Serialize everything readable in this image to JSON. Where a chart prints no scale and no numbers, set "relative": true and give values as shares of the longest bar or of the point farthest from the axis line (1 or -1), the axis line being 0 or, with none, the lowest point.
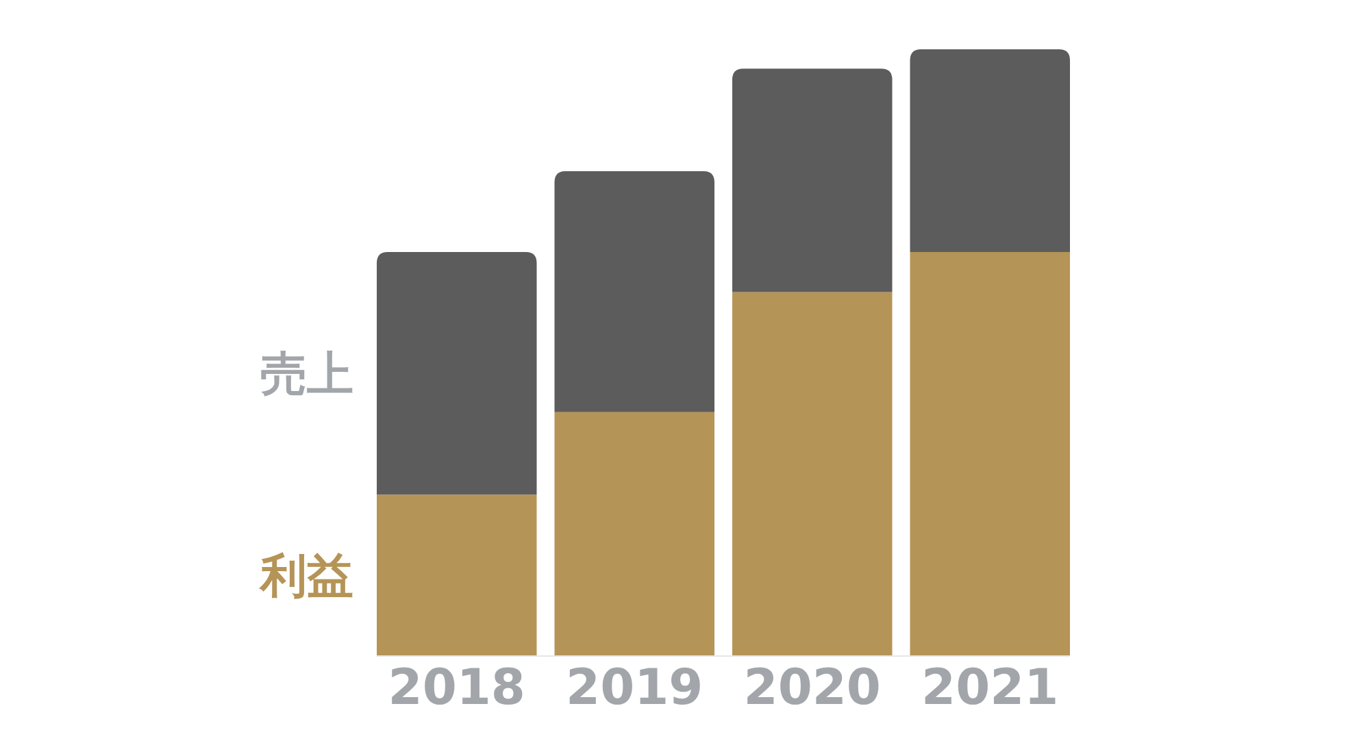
{
  "chart_data": {
    "type": "bar",
    "stacked": true,
    "relative": true,
    "categories": [
      "2018",
      "2019",
      "2020",
      "2021"
    ],
    "series": [
      {
        "name": "利益",
        "color": "#b59457",
        "values": [
          0.266,
          0.402,
          0.6,
          0.666
        ]
      },
      {
        "name": "売上",
        "color": "#5c5c5c",
        "values": [
          0.4,
          0.397,
          0.368,
          0.334
        ]
      }
    ]
  }
}
